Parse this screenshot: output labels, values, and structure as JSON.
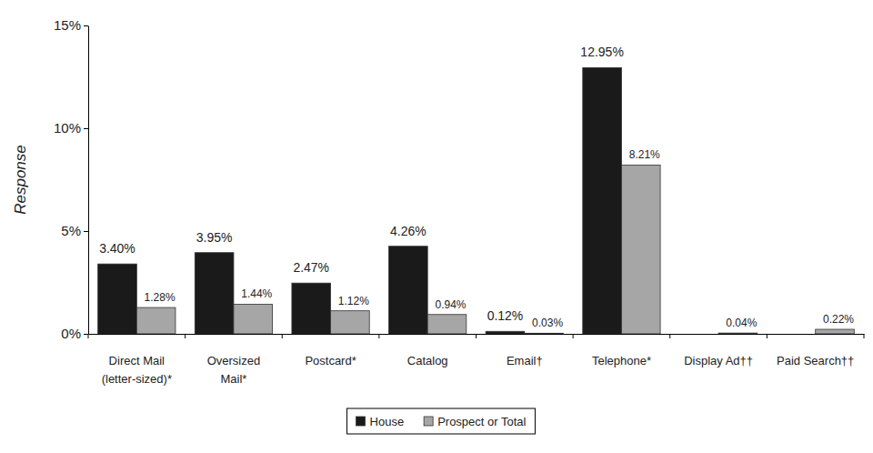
{
  "chart_data": {
    "type": "bar",
    "y_label": "Response",
    "categories": [
      "Direct Mail\n(letter-sized)*",
      "Oversized\nMail*",
      "Postcard*",
      "Catalog",
      "Email†",
      "Telephone*",
      "Display Ad††",
      "Paid Search††"
    ],
    "series": [
      {
        "name": "House",
        "color": "#1a1a1a",
        "values": [
          3.4,
          3.95,
          2.47,
          4.26,
          0.12,
          12.95,
          null,
          null
        ],
        "value_labels": [
          "3.40%",
          "3.95%",
          "2.47%",
          "4.26%",
          "0.12%",
          "12.95%",
          null,
          null
        ]
      },
      {
        "name": "Prospect or Total",
        "color": "#a6a6a6",
        "values": [
          1.28,
          1.44,
          1.12,
          0.94,
          0.03,
          8.21,
          0.04,
          0.22
        ],
        "value_labels": [
          "1.28%",
          "1.44%",
          "1.12%",
          "0.94%",
          "0.03%",
          "8.21%",
          "0.04%",
          "0.22%"
        ]
      }
    ],
    "ylim": [
      0,
      15
    ],
    "yticks": [
      {
        "value": 0,
        "label": "0%"
      },
      {
        "value": 5,
        "label": "5%"
      },
      {
        "value": 10,
        "label": "10%"
      },
      {
        "value": 15,
        "label": "15%"
      }
    ],
    "grid": false,
    "legend": "bottom",
    "data_labels": true
  }
}
